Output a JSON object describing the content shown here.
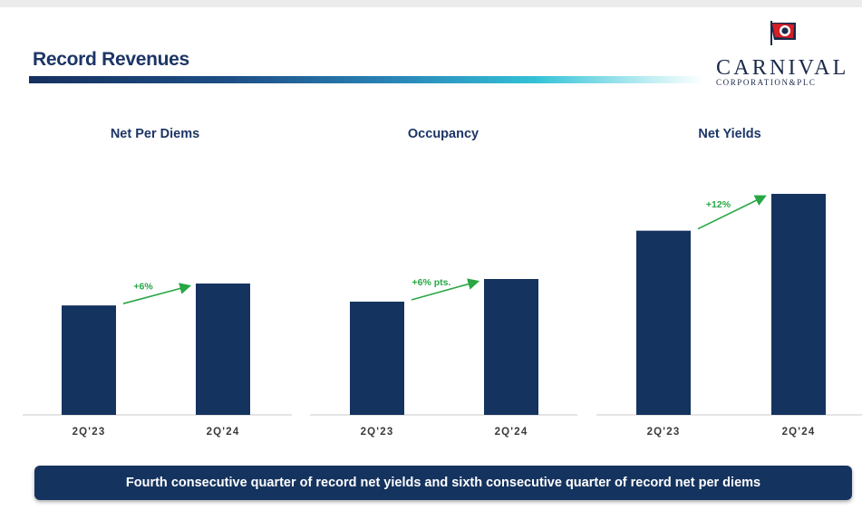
{
  "slide": {
    "title": "Record Revenues",
    "banner": "Fourth consecutive quarter of record net yields and sixth consecutive quarter of record net per diems"
  },
  "logo": {
    "name": "CARNIVAL",
    "subtitle": "CORPORATION&PLC"
  },
  "colors": {
    "bar": "#15335f",
    "arrow": "#28a745",
    "title": "#1c3566"
  },
  "chart_data": [
    {
      "type": "bar",
      "title": "Net Per Diems",
      "categories": [
        "2Q'23",
        "2Q'24"
      ],
      "values": [
        100,
        106
      ],
      "change_label": "+6%",
      "grid": false
    },
    {
      "type": "bar",
      "title": "Occupancy",
      "categories": [
        "2Q'23",
        "2Q'24"
      ],
      "values": [
        100,
        106
      ],
      "change_label": "+6% pts.",
      "grid": false
    },
    {
      "type": "bar",
      "title": "Net Yields",
      "categories": [
        "2Q'23",
        "2Q'24"
      ],
      "values": [
        100,
        112
      ],
      "change_label": "+12%",
      "grid": false
    }
  ]
}
